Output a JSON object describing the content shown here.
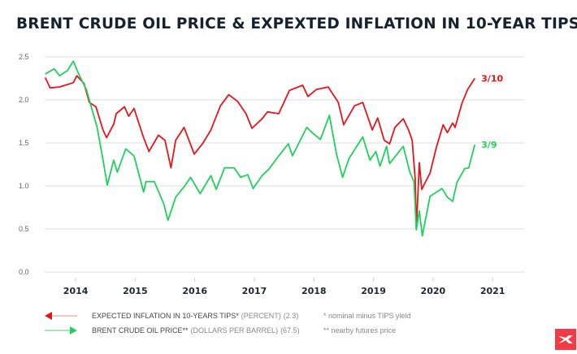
{
  "chart_data": {
    "type": "line",
    "title": "BRENT CRUDE OIL PRICE & EXPEXTED INFLATION IN 10-YEAR TIPS",
    "xlim": [
      2013.48,
      2021.53
    ],
    "ylim": [
      0,
      2.5
    ],
    "x_ticks": [
      "2014",
      "2015",
      "2016",
      "2017",
      "2018",
      "2019",
      "2020",
      "2021"
    ],
    "y_ticks": [
      "0.0",
      "0.5",
      "1.0",
      "1.5",
      "2.0",
      "2.5"
    ],
    "grid": true,
    "series": [
      {
        "name": "EXPECTED INFLATION IN 10-YEARS TIPS*",
        "unit": "(PERCENT)",
        "last_value": "(2.3)",
        "end_label": "3/10",
        "color": "#e8141b",
        "x": [
          2013.49,
          2013.57,
          2013.73,
          2013.96,
          2014.02,
          2014.14,
          2014.23,
          2014.34,
          2014.46,
          2014.52,
          2014.64,
          2014.68,
          2014.82,
          2014.89,
          2014.98,
          2015.14,
          2015.23,
          2015.39,
          2015.5,
          2015.6,
          2015.68,
          2015.82,
          2015.99,
          2016.13,
          2016.27,
          2016.43,
          2016.57,
          2016.72,
          2016.86,
          2016.96,
          2017.13,
          2017.22,
          2017.41,
          2017.59,
          2017.81,
          2017.9,
          2018.04,
          2018.24,
          2018.41,
          2018.5,
          2018.68,
          2018.82,
          2018.98,
          2019.07,
          2019.18,
          2019.27,
          2019.36,
          2019.5,
          2019.59,
          2019.65,
          2019.7,
          2019.72,
          2019.77,
          2019.81,
          2019.95,
          2020.06,
          2020.17,
          2020.24,
          2020.33,
          2020.37,
          2020.49,
          2020.58,
          2020.7
        ],
        "y": [
          2.26,
          2.14,
          2.15,
          2.2,
          2.28,
          2.19,
          1.97,
          1.92,
          1.65,
          1.56,
          1.72,
          1.84,
          1.92,
          1.81,
          1.9,
          1.56,
          1.4,
          1.59,
          1.53,
          1.21,
          1.53,
          1.68,
          1.37,
          1.49,
          1.65,
          1.93,
          2.06,
          1.98,
          1.84,
          1.67,
          1.78,
          1.86,
          1.84,
          2.11,
          2.17,
          2.04,
          2.12,
          2.15,
          1.97,
          1.71,
          1.93,
          1.97,
          1.65,
          1.79,
          1.53,
          1.49,
          1.68,
          1.78,
          1.65,
          1.53,
          1.08,
          0.5,
          1.27,
          0.96,
          1.15,
          1.46,
          1.71,
          1.62,
          1.73,
          1.68,
          1.97,
          2.12,
          2.25
        ]
      },
      {
        "name": "BRENT CRUDE OIL PRICE**",
        "unit": "(DOLLARS PER BARREL)",
        "last_value": "(67.5)",
        "end_label": "3/9",
        "color": "#1fd15c",
        "x": [
          2013.49,
          2013.64,
          2013.73,
          2013.86,
          2013.96,
          2014.05,
          2014.18,
          2014.27,
          2014.36,
          2014.46,
          2014.53,
          2014.64,
          2014.7,
          2014.84,
          2014.98,
          2015.14,
          2015.18,
          2015.32,
          2015.48,
          2015.55,
          2015.68,
          2015.82,
          2015.93,
          2016.09,
          2016.27,
          2016.36,
          2016.5,
          2016.66,
          2016.77,
          2016.89,
          2016.98,
          2017.13,
          2017.25,
          2017.41,
          2017.57,
          2017.64,
          2017.88,
          2017.97,
          2018.11,
          2018.26,
          2018.38,
          2018.48,
          2018.59,
          2018.82,
          2018.94,
          2019.04,
          2019.11,
          2019.22,
          2019.27,
          2019.5,
          2019.61,
          2019.68,
          2019.72,
          2019.77,
          2019.82,
          2019.95,
          2020.15,
          2020.24,
          2020.33,
          2020.4,
          2020.53,
          2020.6,
          2020.7
        ],
        "y": [
          2.3,
          2.36,
          2.28,
          2.34,
          2.45,
          2.3,
          2.12,
          1.9,
          1.68,
          1.3,
          1.01,
          1.3,
          1.16,
          1.43,
          1.35,
          0.93,
          1.05,
          1.05,
          0.79,
          0.6,
          0.87,
          0.99,
          1.1,
          0.91,
          1.12,
          0.96,
          1.21,
          1.21,
          1.1,
          1.13,
          0.97,
          1.12,
          1.2,
          1.35,
          1.49,
          1.35,
          1.68,
          1.62,
          1.54,
          1.82,
          1.37,
          1.1,
          1.32,
          1.57,
          1.3,
          1.4,
          1.23,
          1.46,
          1.26,
          1.46,
          1.16,
          1.05,
          0.49,
          0.71,
          0.42,
          0.88,
          0.97,
          0.87,
          0.82,
          1.04,
          1.2,
          1.21,
          1.48
        ]
      }
    ]
  },
  "footnotes": [
    "* nominal minus TIPS yield",
    "** nearby futures price"
  ],
  "colors": {
    "title": "#18222f",
    "grid": "#dddddd",
    "logo": "#f23b46"
  }
}
